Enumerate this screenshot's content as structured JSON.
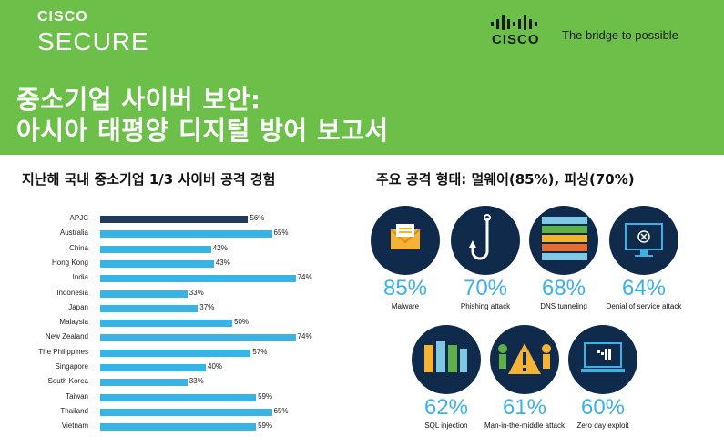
{
  "header": {
    "brand_small": "CISCO",
    "brand_big": "SECURE",
    "logo_word": "CISCO",
    "tagline": "The bridge to possible",
    "title_line1": "중소기업 사이버 보안:",
    "title_line2": "아시아 태평양 디지털 방어 보고서",
    "colors": {
      "header_bg": "#6cc04a",
      "title": "#ffffff"
    }
  },
  "left_section": {
    "title": "지난해 국내 중소기업 1/3 사이버 공격 경험"
  },
  "right_section": {
    "title": "주요 공격 형태: 멀웨어(85%), 피싱(70%)"
  },
  "chart_data": {
    "type": "bar",
    "orientation": "horizontal",
    "title": "지난해 국내 중소기업 1/3 사이버 공격 경험",
    "categories": [
      "APJC",
      "Australia",
      "China",
      "Hong Kong",
      "India",
      "Indonesia",
      "Japan",
      "Malaysia",
      "New Zealand",
      "The Philippines",
      "Singapore",
      "South Korea",
      "Taiwan",
      "Thailand",
      "Vietnam"
    ],
    "values": [
      56,
      65,
      42,
      43,
      74,
      33,
      37,
      50,
      74,
      57,
      40,
      33,
      59,
      65,
      59
    ],
    "value_labels": [
      "56%",
      "65%",
      "42%",
      "43%",
      "74%",
      "33%",
      "37%",
      "50%",
      "74%",
      "57%",
      "40%",
      "33%",
      "59%",
      "65%",
      "59%"
    ],
    "xlim": [
      0,
      100
    ],
    "highlight_color": "#1e3a5f",
    "bar_color": "#38b3e6",
    "grid": false
  },
  "stats": [
    {
      "pct": "85%",
      "label": "Malware",
      "icon": "envelope-icon"
    },
    {
      "pct": "70%",
      "label": "Phishing attack",
      "icon": "fishhook-icon"
    },
    {
      "pct": "68%",
      "label": "DNS tunneling",
      "icon": "server-icon"
    },
    {
      "pct": "64%",
      "label": "Denial of service attack",
      "icon": "monitor-icon"
    },
    {
      "pct": "62%",
      "label": "SQL injection",
      "icon": "database-icon"
    },
    {
      "pct": "61%",
      "label": "Man-in-the-middle attack",
      "icon": "warning-icon"
    },
    {
      "pct": "60%",
      "label": "Zero day exploit",
      "icon": "laptop-icon"
    }
  ]
}
